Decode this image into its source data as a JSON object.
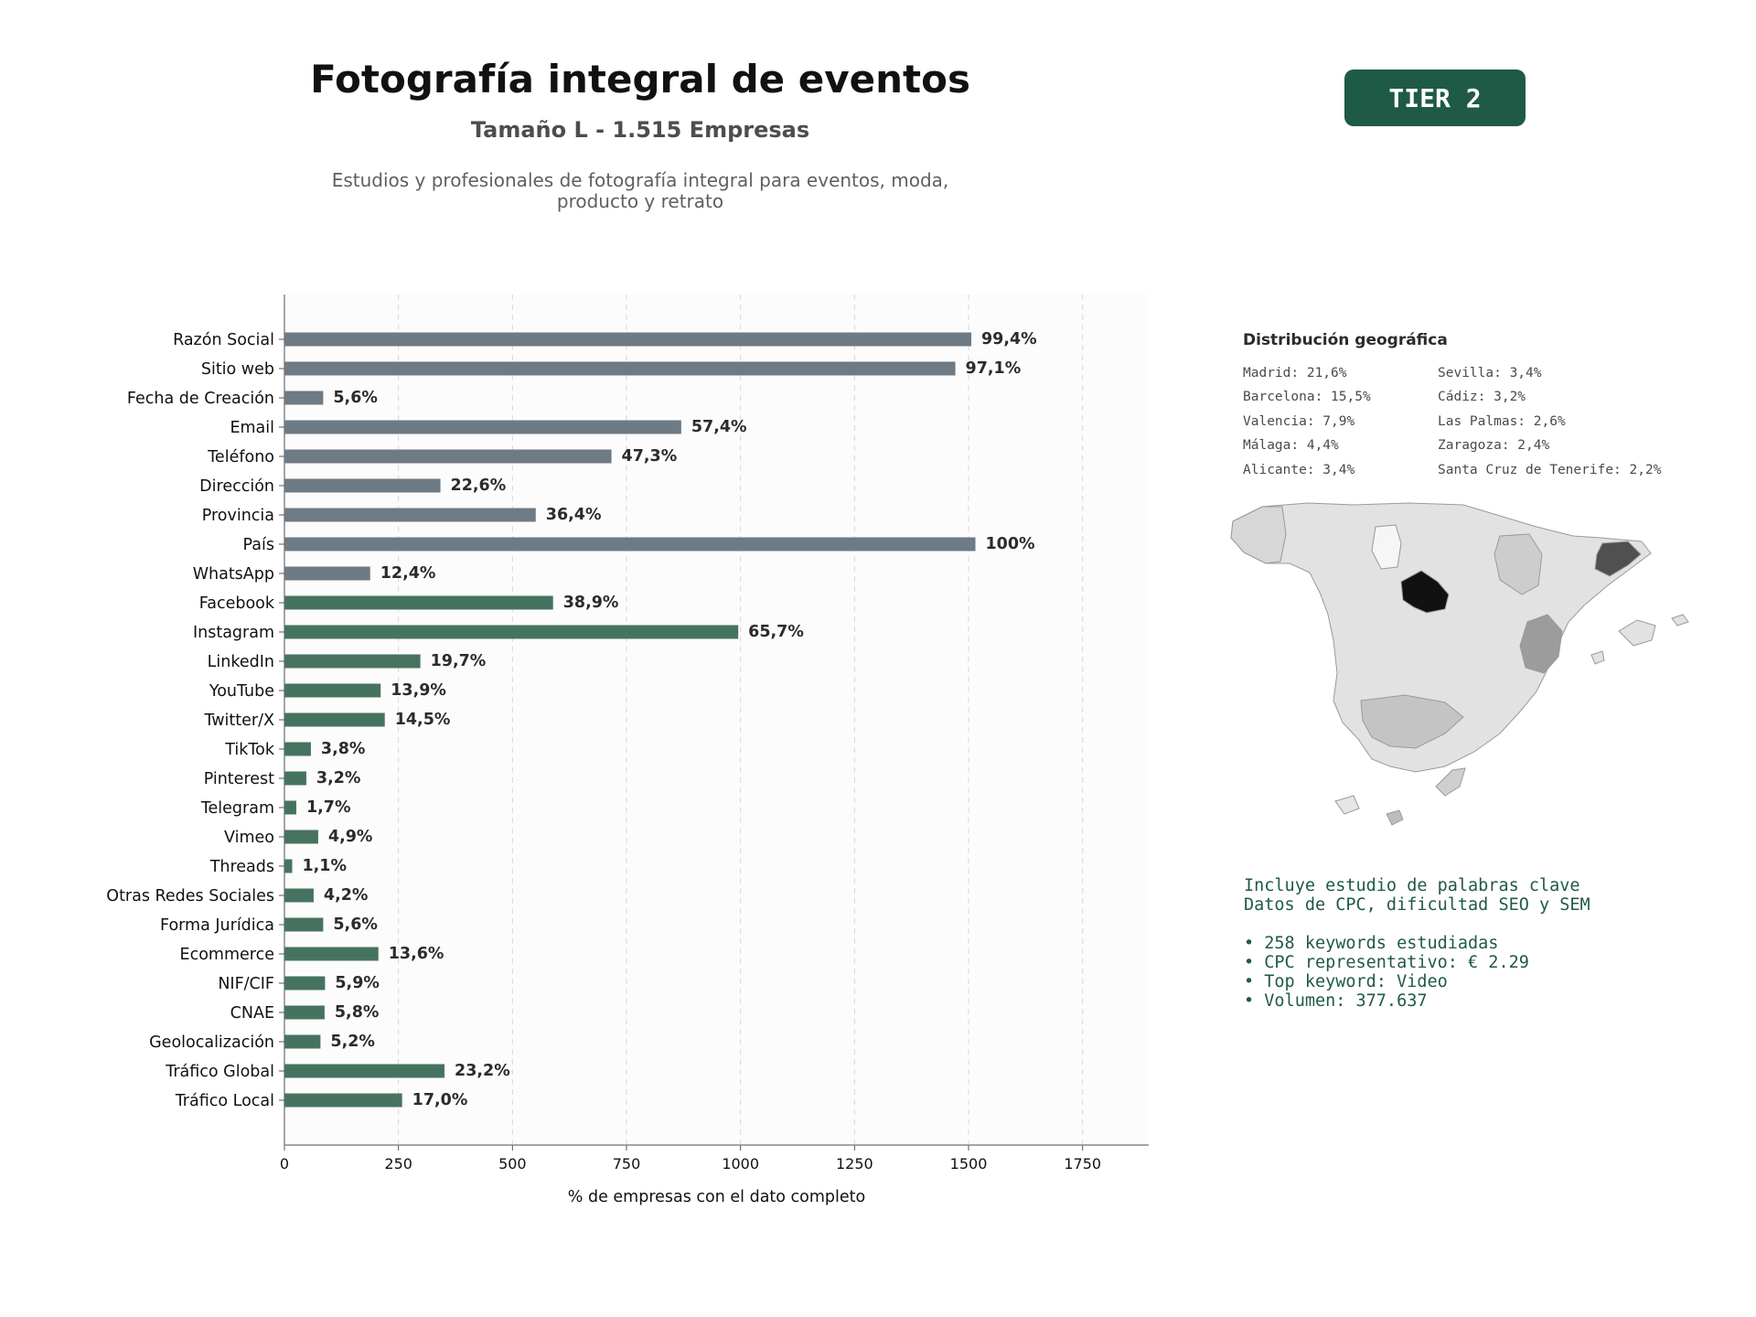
{
  "header": {
    "title": "Fotografía integral de eventos",
    "subtitle": "Tamaño L - 1.515 Empresas",
    "description_line1": "Estudios y profesionales de fotografía integral para eventos, moda,",
    "description_line2": "producto y retrato",
    "tier": "TIER 2"
  },
  "colors": {
    "gray_bar": "#6e7a84",
    "green_bar": "#46735f",
    "badge": "#1f5a46",
    "keyword_text": "#1f5a46"
  },
  "chart_data": {
    "type": "bar",
    "orientation": "horizontal",
    "categories": [
      "Razón Social",
      "Sitio web",
      "Fecha de Creación",
      "Email",
      "Teléfono",
      "Dirección",
      "Provincia",
      "País",
      "WhatsApp",
      "Facebook",
      "Instagram",
      "LinkedIn",
      "YouTube",
      "Twitter/X",
      "TikTok",
      "Pinterest",
      "Telegram",
      "Vimeo",
      "Threads",
      "Otras Redes Sociales",
      "Forma Jurídica",
      "Ecommerce",
      "NIF/CIF",
      "CNAE",
      "Geolocalización",
      "Tráfico Global",
      "Tráfico Local"
    ],
    "values": [
      1506,
      1471,
      85,
      870,
      717,
      342,
      551,
      1515,
      188,
      589,
      995,
      298,
      211,
      220,
      58,
      48,
      26,
      74,
      17,
      64,
      85,
      206,
      89,
      88,
      79,
      351,
      258
    ],
    "labels": [
      "99,4%",
      "97,1%",
      "5,6%",
      "57,4%",
      "47,3%",
      "22,6%",
      "36,4%",
      "100%",
      "12,4%",
      "38,9%",
      "65,7%",
      "19,7%",
      "13,9%",
      "14,5%",
      "3,8%",
      "3,2%",
      "1,7%",
      "4,9%",
      "1,1%",
      "4,2%",
      "5,6%",
      "13,6%",
      "5,9%",
      "5,8%",
      "5,2%",
      "23,2%",
      "17,0%"
    ],
    "bar_group": [
      "gray",
      "gray",
      "gray",
      "gray",
      "gray",
      "gray",
      "gray",
      "gray",
      "gray",
      "green",
      "green",
      "green",
      "green",
      "green",
      "green",
      "green",
      "green",
      "green",
      "green",
      "green",
      "green",
      "green",
      "green",
      "green",
      "green",
      "green",
      "green"
    ],
    "xlabel": "% de empresas con el dato completo",
    "xlim": [
      0,
      1895
    ],
    "xticks": [
      "0",
      "250",
      "500",
      "750",
      "1000",
      "1250",
      "1500",
      "1750"
    ],
    "xtick_values": [
      0,
      250,
      500,
      750,
      1000,
      1250,
      1500,
      1750
    ],
    "grid": "vertical dashed"
  },
  "geo": {
    "title": "Distribución geográfica",
    "col1": [
      "Madrid: 21,6%",
      "Barcelona: 15,5%",
      "Valencia: 7,9%",
      "Málaga: 4,4%",
      "Alicante: 3,4%"
    ],
    "col2": [
      "Sevilla: 3,4%",
      "Cádiz: 3,2%",
      "Las Palmas: 2,6%",
      "Zaragoza: 2,4%",
      "Santa Cruz de Tenerife: 2,2%"
    ]
  },
  "keywords": {
    "line1": "Incluye estudio de palabras clave",
    "line2": "Datos de CPC, dificultad SEO y SEM",
    "bullets": [
      "• 258 keywords estudiadas",
      "• CPC representativo: € 2.29",
      "• Top keyword: Video",
      "• Volumen: 377.637"
    ]
  }
}
